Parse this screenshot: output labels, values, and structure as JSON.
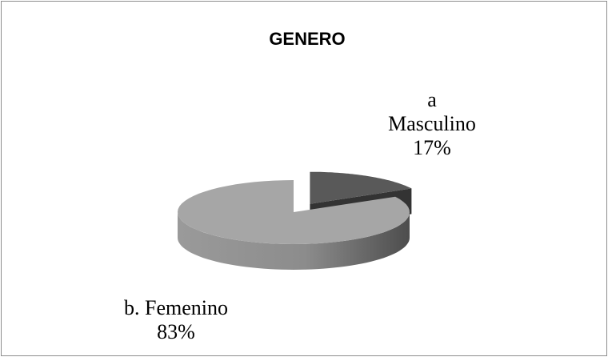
{
  "chart_data": {
    "type": "pie",
    "title": "GENERO",
    "categories": [
      "a Masculino",
      "b. Femenino"
    ],
    "values": [
      17,
      83
    ],
    "value_labels": [
      "17%",
      "83%"
    ],
    "colors": [
      "#595959",
      "#a6a6a6"
    ],
    "explode": [
      true,
      false
    ],
    "three_d": true
  }
}
